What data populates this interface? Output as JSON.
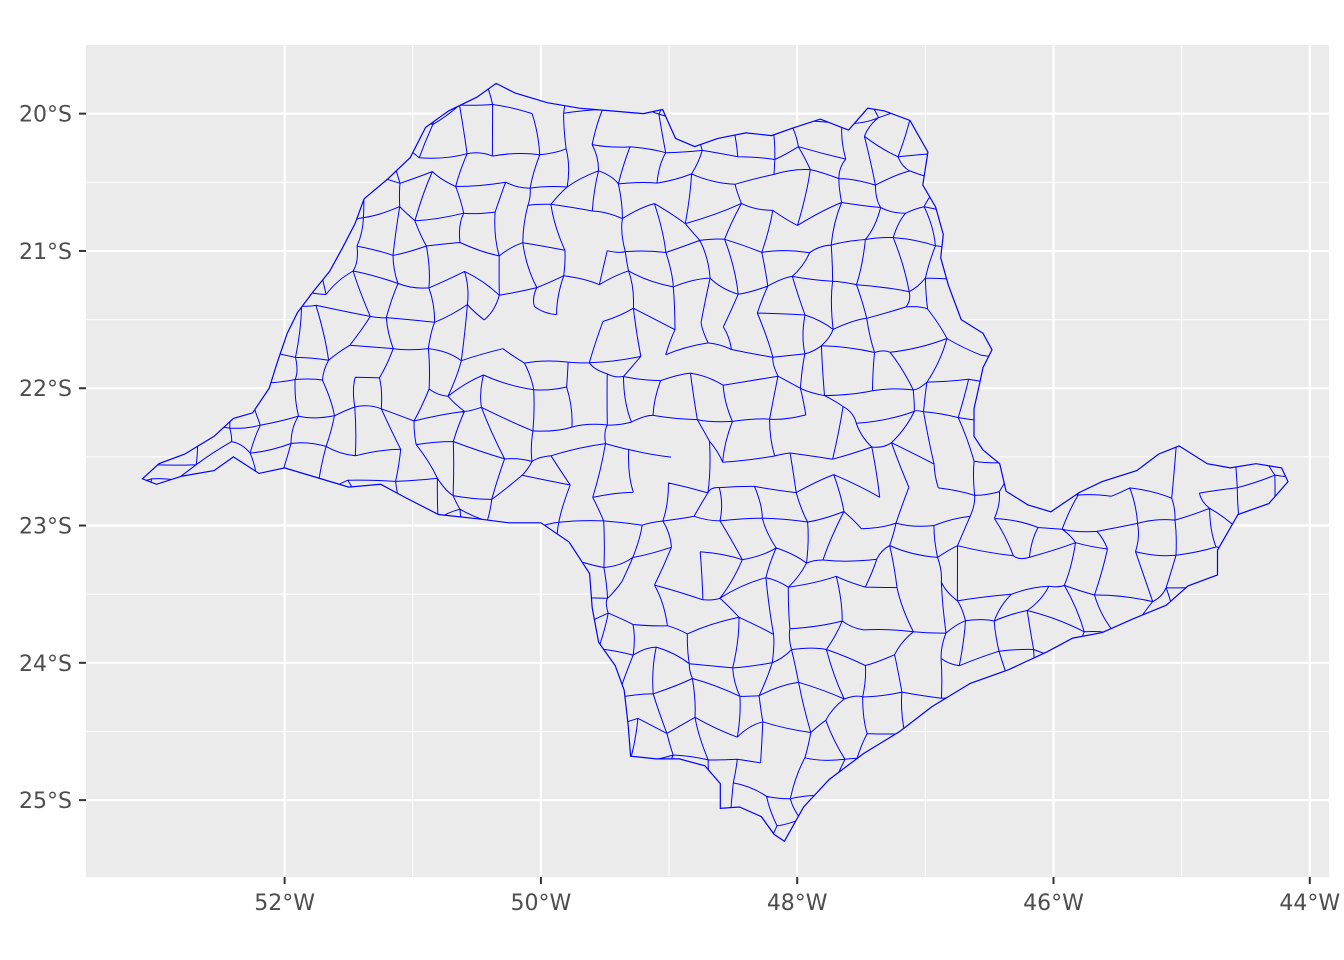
{
  "map": {
    "type": "choropleth-outline",
    "region": "",
    "stroke_color": "#0000ff",
    "fill_color": "#ebebeb",
    "panel_background": "#ebebeb",
    "grid_color": "#ffffff",
    "x_ticks": [
      {
        "value": -52,
        "label": "52°W"
      },
      {
        "value": -50,
        "label": "50°W"
      },
      {
        "value": -48,
        "label": "48°W"
      },
      {
        "value": -46,
        "label": "46°W"
      },
      {
        "value": -44,
        "label": "44°W"
      }
    ],
    "y_ticks": [
      {
        "value": -20,
        "label": "20°S"
      },
      {
        "value": -21,
        "label": "21°S"
      },
      {
        "value": -22,
        "label": "22°S"
      },
      {
        "value": -23,
        "label": "23°S"
      },
      {
        "value": -24,
        "label": "24°S"
      },
      {
        "value": -25,
        "label": "25°S"
      }
    ],
    "xlim": [
      -53.55,
      -43.85
    ],
    "ylim": [
      -25.56,
      -19.5
    ],
    "outline": [
      [
        -53.11,
        -22.66
      ],
      [
        -52.98,
        -22.55
      ],
      [
        -52.78,
        -22.48
      ],
      [
        -52.55,
        -22.35
      ],
      [
        -52.4,
        -22.22
      ],
      [
        -52.25,
        -22.18
      ],
      [
        -52.12,
        -22.0
      ],
      [
        -52.06,
        -21.82
      ],
      [
        -51.98,
        -21.6
      ],
      [
        -51.9,
        -21.45
      ],
      [
        -51.78,
        -21.3
      ],
      [
        -51.65,
        -21.15
      ],
      [
        -51.55,
        -20.98
      ],
      [
        -51.45,
        -20.8
      ],
      [
        -51.38,
        -20.62
      ],
      [
        -51.2,
        -20.48
      ],
      [
        -51.02,
        -20.32
      ],
      [
        -50.9,
        -20.1
      ],
      [
        -50.72,
        -19.98
      ],
      [
        -50.5,
        -19.88
      ],
      [
        -50.35,
        -19.78
      ],
      [
        -50.2,
        -19.85
      ],
      [
        -49.95,
        -19.92
      ],
      [
        -49.7,
        -19.96
      ],
      [
        -49.45,
        -19.98
      ],
      [
        -49.2,
        -20.0
      ],
      [
        -49.05,
        -19.97
      ],
      [
        -48.95,
        -20.18
      ],
      [
        -48.8,
        -20.24
      ],
      [
        -48.62,
        -20.18
      ],
      [
        -48.4,
        -20.14
      ],
      [
        -48.2,
        -20.16
      ],
      [
        -48.02,
        -20.1
      ],
      [
        -47.82,
        -20.04
      ],
      [
        -47.6,
        -20.12
      ],
      [
        -47.45,
        -19.96
      ],
      [
        -47.32,
        -19.98
      ],
      [
        -47.12,
        -20.05
      ],
      [
        -46.98,
        -20.28
      ],
      [
        -47.02,
        -20.52
      ],
      [
        -46.92,
        -20.68
      ],
      [
        -46.86,
        -20.88
      ],
      [
        -46.88,
        -21.05
      ],
      [
        -46.82,
        -21.25
      ],
      [
        -46.72,
        -21.5
      ],
      [
        -46.55,
        -21.6
      ],
      [
        -46.48,
        -21.72
      ],
      [
        -46.55,
        -21.85
      ],
      [
        -46.58,
        -21.98
      ],
      [
        -46.62,
        -22.15
      ],
      [
        -46.62,
        -22.35
      ],
      [
        -46.55,
        -22.45
      ],
      [
        -46.42,
        -22.55
      ],
      [
        -46.37,
        -22.75
      ],
      [
        -46.2,
        -22.85
      ],
      [
        -46.02,
        -22.9
      ],
      [
        -45.8,
        -22.76
      ],
      [
        -45.62,
        -22.68
      ],
      [
        -45.35,
        -22.6
      ],
      [
        -45.18,
        -22.48
      ],
      [
        -45.02,
        -22.42
      ],
      [
        -44.8,
        -22.55
      ],
      [
        -44.62,
        -22.58
      ],
      [
        -44.42,
        -22.55
      ],
      [
        -44.22,
        -22.58
      ],
      [
        -44.17,
        -22.68
      ],
      [
        -44.32,
        -22.84
      ],
      [
        -44.56,
        -22.92
      ],
      [
        -44.72,
        -23.18
      ],
      [
        -44.72,
        -23.36
      ],
      [
        -44.95,
        -23.44
      ],
      [
        -45.12,
        -23.58
      ],
      [
        -45.38,
        -23.68
      ],
      [
        -45.62,
        -23.78
      ],
      [
        -45.85,
        -23.82
      ],
      [
        -46.05,
        -23.92
      ],
      [
        -46.35,
        -24.05
      ],
      [
        -46.65,
        -24.15
      ],
      [
        -46.95,
        -24.32
      ],
      [
        -47.2,
        -24.5
      ],
      [
        -47.48,
        -24.66
      ],
      [
        -47.75,
        -24.85
      ],
      [
        -47.95,
        -25.05
      ],
      [
        -48.1,
        -25.3
      ],
      [
        -48.18,
        -25.25
      ],
      [
        -48.28,
        -25.12
      ],
      [
        -48.45,
        -25.05
      ],
      [
        -48.6,
        -25.06
      ],
      [
        -48.6,
        -24.88
      ],
      [
        -48.72,
        -24.75
      ],
      [
        -48.92,
        -24.7
      ],
      [
        -49.1,
        -24.7
      ],
      [
        -49.3,
        -24.68
      ],
      [
        -49.32,
        -24.45
      ],
      [
        -49.35,
        -24.2
      ],
      [
        -49.42,
        -24.02
      ],
      [
        -49.55,
        -23.85
      ],
      [
        -49.6,
        -23.6
      ],
      [
        -49.62,
        -23.35
      ],
      [
        -49.78,
        -23.12
      ],
      [
        -50.0,
        -22.98
      ],
      [
        -50.25,
        -22.98
      ],
      [
        -50.5,
        -22.95
      ],
      [
        -50.8,
        -22.92
      ],
      [
        -51.05,
        -22.8
      ],
      [
        -51.25,
        -22.7
      ],
      [
        -51.5,
        -22.72
      ],
      [
        -51.75,
        -22.65
      ],
      [
        -52.0,
        -22.58
      ],
      [
        -52.2,
        -22.62
      ],
      [
        -52.4,
        -22.5
      ],
      [
        -52.55,
        -22.6
      ],
      [
        -52.8,
        -22.64
      ],
      [
        -53.0,
        -22.7
      ],
      [
        -53.11,
        -22.66
      ]
    ]
  }
}
